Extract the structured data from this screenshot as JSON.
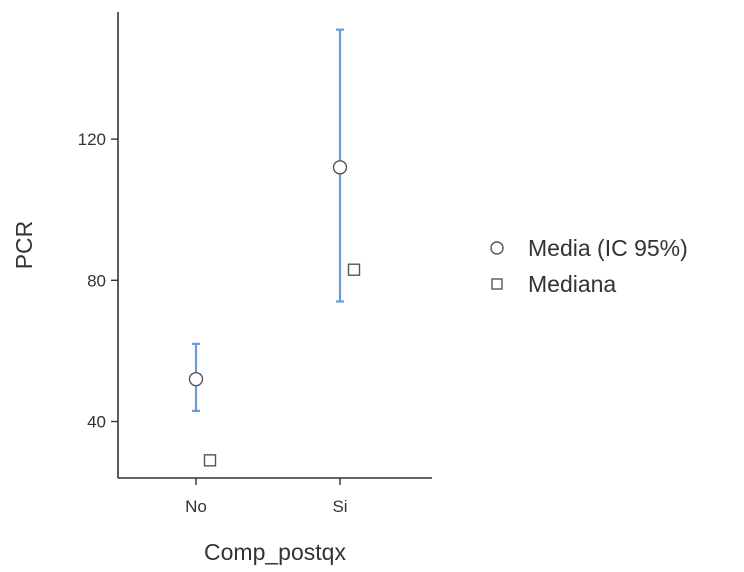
{
  "chart_data": {
    "type": "scatter",
    "categories": [
      "No",
      "Si"
    ],
    "xlabel": "Comp_postqx",
    "ylabel": "PCR",
    "yticks": [
      40,
      80,
      120
    ],
    "ylim": [
      24,
      156
    ],
    "grid": false,
    "legend_position": "right",
    "series": [
      {
        "name": "Media (IC 95%)",
        "marker": "circle",
        "values": [
          52,
          112
        ],
        "ci_lower": [
          43,
          74
        ],
        "ci_upper": [
          62,
          151
        ]
      },
      {
        "name": "Mediana",
        "marker": "square",
        "values": [
          29,
          83
        ]
      }
    ],
    "colors": {
      "error_bar": "#6b9bd8",
      "marker_stroke": "#555555",
      "axis": "#333333"
    }
  }
}
